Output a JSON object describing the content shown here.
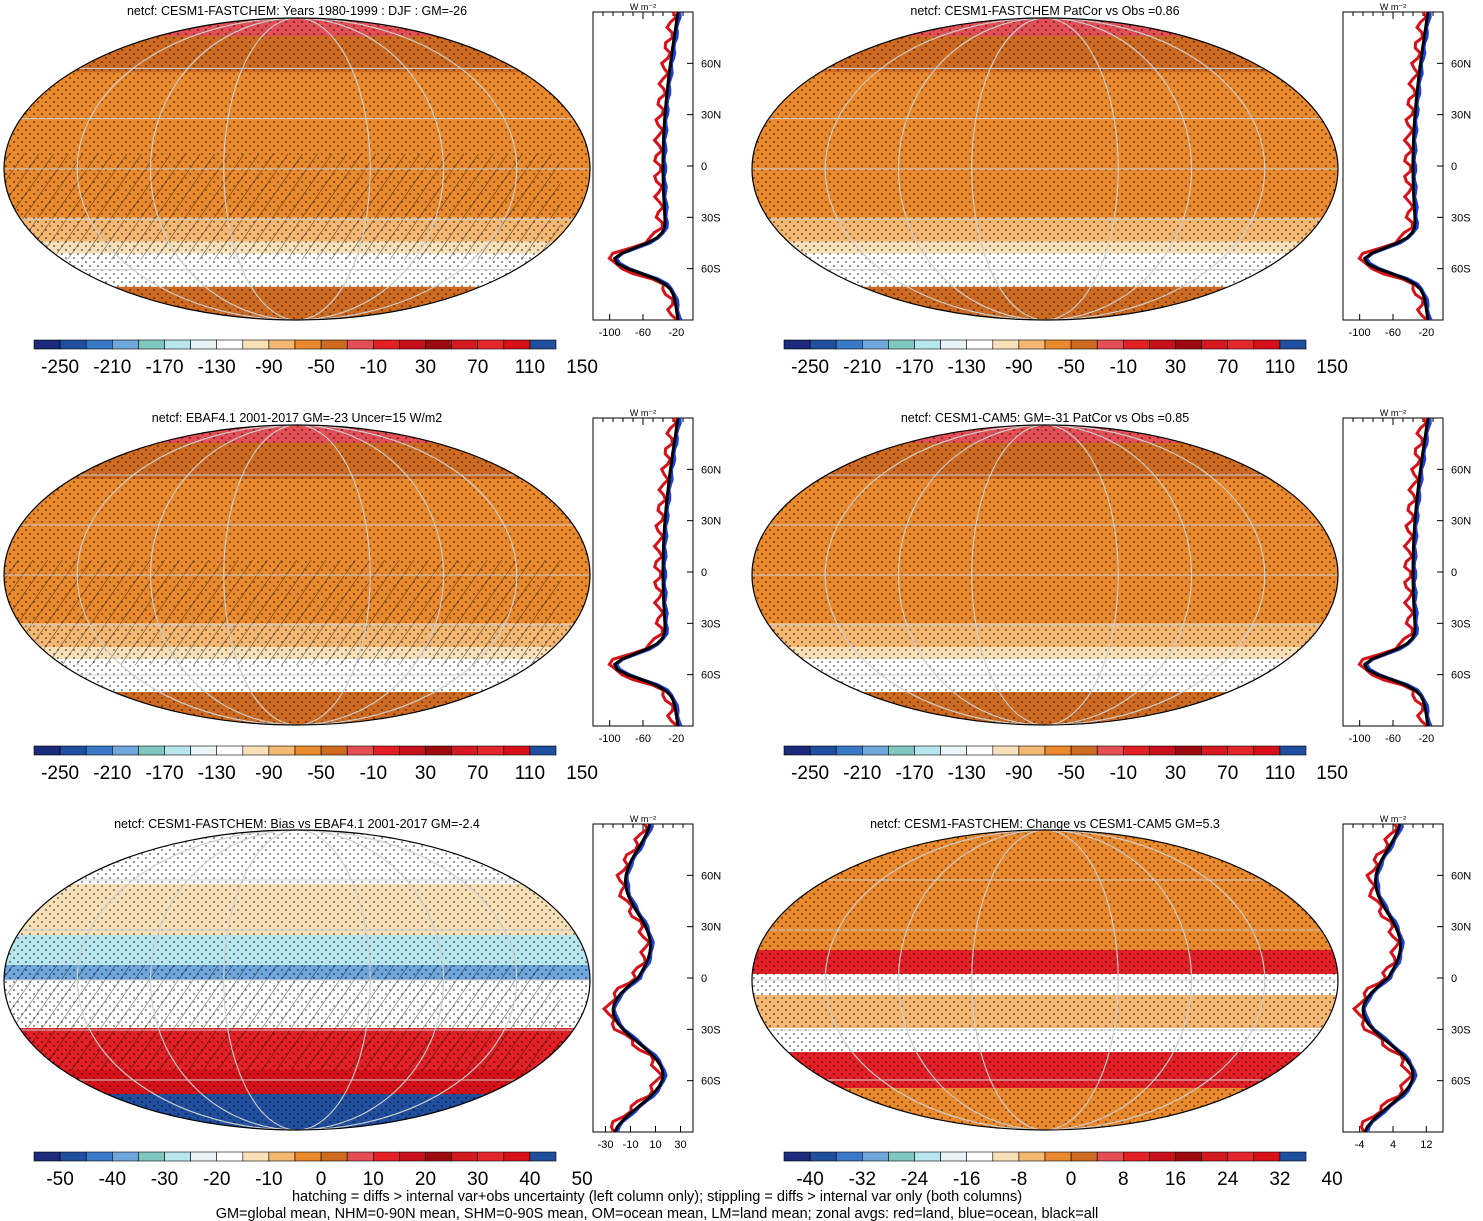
{
  "colors": {
    "abs_scale": [
      "#1b2a7a",
      "#1f4f9e",
      "#3a78c8",
      "#6fa6dc",
      "#7fc7bf",
      "#b8e6ef",
      "#e9f4f6",
      "#ffffff",
      "#f8e0b8",
      "#f5b872",
      "#ea8a2c",
      "#cf6b21",
      "#e34f55",
      "#e32025",
      "#c8101a",
      "#9c0a10",
      "#d41a20",
      "#e3272c",
      "#d8101a",
      "#1f4f9e"
    ],
    "diff_scale": [
      "#1b2a7a",
      "#1f4f9e",
      "#3a78c8",
      "#6fa6dc",
      "#7fc7bf",
      "#b8e6ef",
      "#e9f4f6",
      "#ffffff",
      "#f8e0b8",
      "#f5b872",
      "#ea8a2c",
      "#cf6b21",
      "#e34f55",
      "#e32025",
      "#c8101a",
      "#9c0a10",
      "#d41a20",
      "#e3272c",
      "#d8101a",
      "#1f4f9e"
    ],
    "land_line": "#d8101a",
    "ocean_line": "#1f3fd6",
    "all_line": "#000000"
  },
  "panels": [
    {
      "title": "netcf: CESM1-FASTCHEM: Years 1980-1999 : DJF : GM=-26",
      "kind": "abs",
      "zonal_axis": "abs"
    },
    {
      "title": "netcf: CESM1-FASTCHEM PatCor vs Obs =0.86",
      "kind": "abs",
      "zonal_axis": "abs"
    },
    {
      "title": "netcf: EBAF4.1 2001-2017 GM=-23 Uncer=15 W/m2",
      "kind": "abs",
      "zonal_axis": "abs"
    },
    {
      "title": "netcf: CESM1-CAM5: GM=-31 PatCor vs Obs =0.85",
      "kind": "abs",
      "zonal_axis": "abs"
    },
    {
      "title": "netcf: CESM1-FASTCHEM: Bias vs EBAF4.1 2001-2017 GM=-2.4",
      "kind": "bias",
      "zonal_axis": "bias"
    },
    {
      "title": "netcf: CESM1-FASTCHEM: Change vs CESM1-CAM5 GM=5.3",
      "kind": "change",
      "zonal_axis": "change"
    }
  ],
  "colorbars": {
    "abs_labels": [
      "-250",
      "-210",
      "-170",
      "-130",
      "-90",
      "-50",
      "-10",
      "30",
      "70",
      "110",
      "150"
    ],
    "bias_labels": [
      "-50",
      "-40",
      "-30",
      "-20",
      "-10",
      "0",
      "10",
      "20",
      "30",
      "40",
      "50"
    ],
    "change_labels": [
      "-40",
      "-32",
      "-24",
      "-16",
      "-8",
      "0",
      "8",
      "16",
      "24",
      "32",
      "40"
    ]
  },
  "zonal_axes": {
    "unit": "W m⁻²",
    "lat_labels": [
      "60N",
      "30N",
      "0",
      "30S",
      "60S"
    ],
    "abs_x": [
      "-100",
      "-60",
      "-20"
    ],
    "bias_x": [
      "-30",
      "-10",
      "10",
      "30"
    ],
    "change_x": [
      "-4",
      "4",
      "12"
    ]
  },
  "footer": {
    "line1": "hatching = diffs > internal var+obs uncertainty (left column only); stippling = diffs > internal var only (both columns)",
    "line2": "GM=global mean, NHM=0-90N mean, SHM=0-90S mean, OM=ocean mean, LM=land mean; zonal avgs: red=land, blue=ocean, black=all"
  }
}
